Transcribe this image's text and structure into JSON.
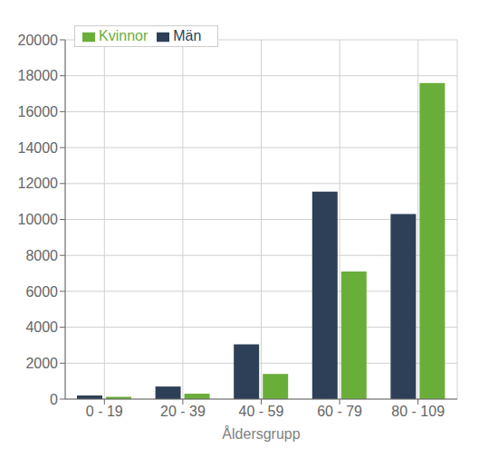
{
  "chart_data": {
    "type": "bar",
    "categories": [
      "0 - 19",
      "20 - 39",
      "40 - 59",
      "60 - 79",
      "80 - 109"
    ],
    "series": [
      {
        "name": "Män",
        "color": "#2E4057",
        "values": [
          200,
          700,
          3050,
          11550,
          10300
        ]
      },
      {
        "name": "Kvinnor",
        "color": "#6AAE3A",
        "values": [
          130,
          300,
          1400,
          7100,
          17600
        ]
      }
    ],
    "xlabel": "Åldersgrupp",
    "ylim": [
      0,
      20000
    ],
    "yticks": [
      0,
      2000,
      4000,
      6000,
      8000,
      10000,
      12000,
      14000,
      16000,
      18000,
      20000
    ],
    "grid": true,
    "legend": "upper left"
  }
}
